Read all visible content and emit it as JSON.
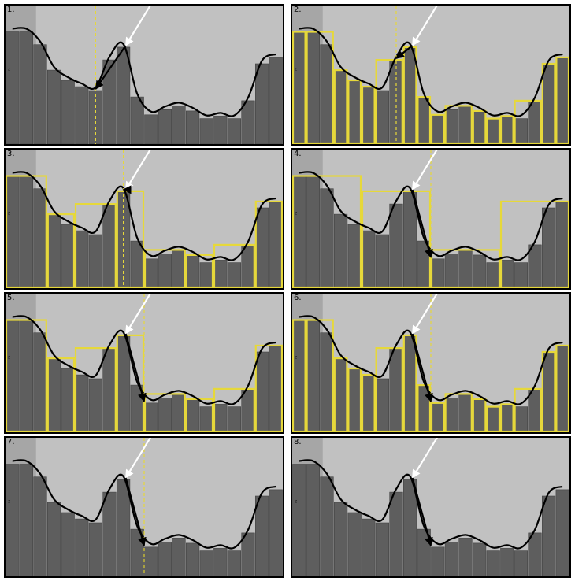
{
  "panels": [
    {
      "label": "1.",
      "variant": "single",
      "blocks": [],
      "target_bar": 6,
      "dashed": true
    },
    {
      "label": "2.",
      "variant": "full",
      "blocks": [
        [
          0,
          1
        ],
        [
          1,
          2
        ],
        [
          2,
          3
        ],
        [
          3,
          4
        ],
        [
          4,
          5
        ],
        [
          5,
          6
        ],
        [
          6,
          7
        ],
        [
          7,
          8
        ],
        [
          8,
          9
        ],
        [
          9,
          10
        ],
        [
          10,
          11
        ],
        [
          11,
          12
        ],
        [
          12,
          13
        ],
        [
          13,
          14
        ],
        [
          14,
          15
        ],
        [
          15,
          16
        ]
      ],
      "target_bar": 7,
      "dashed": true
    },
    {
      "label": "3.",
      "variant": "coarse",
      "blocks": [
        [
          0,
          2
        ],
        [
          2,
          4
        ],
        [
          4,
          6
        ],
        [
          6,
          8
        ],
        [
          8,
          10
        ],
        [
          10,
          12
        ],
        [
          12,
          14
        ],
        [
          14,
          16
        ]
      ],
      "target_bar": 8,
      "dashed": true
    },
    {
      "label": "4.",
      "variant": "coarser",
      "blocks": [
        [
          0,
          4
        ],
        [
          4,
          8
        ],
        [
          8,
          12
        ],
        [
          12,
          16
        ]
      ],
      "target_bar": 9.5,
      "dashed": true
    },
    {
      "label": "5.",
      "variant": "coarse",
      "blocks": [
        [
          0,
          2
        ],
        [
          2,
          4
        ],
        [
          4,
          6
        ],
        [
          6,
          8
        ],
        [
          8,
          10
        ],
        [
          10,
          12
        ],
        [
          12,
          14
        ],
        [
          14,
          16
        ]
      ],
      "target_bar": 9.5,
      "dashed": true
    },
    {
      "label": "6.",
      "variant": "full",
      "blocks": [
        [
          0,
          1
        ],
        [
          1,
          2
        ],
        [
          2,
          3
        ],
        [
          3,
          4
        ],
        [
          4,
          5
        ],
        [
          5,
          6
        ],
        [
          6,
          7
        ],
        [
          7,
          8
        ],
        [
          8,
          9
        ],
        [
          9,
          10
        ],
        [
          10,
          11
        ],
        [
          11,
          12
        ],
        [
          12,
          13
        ],
        [
          13,
          14
        ],
        [
          14,
          15
        ],
        [
          15,
          16
        ]
      ],
      "target_bar": 9.5,
      "dashed": true
    },
    {
      "label": "7.",
      "variant": "none",
      "blocks": [],
      "target_bar": 9.5,
      "dashed": true
    },
    {
      "label": "8.",
      "variant": "none",
      "blocks": [],
      "target_bar": 9.5,
      "dashed": false
    }
  ],
  "bar_heights": [
    0.88,
    0.88,
    0.78,
    0.58,
    0.5,
    0.45,
    0.42,
    0.66,
    0.76,
    0.37,
    0.23,
    0.27,
    0.3,
    0.26,
    0.2,
    0.22,
    0.2,
    0.34,
    0.63,
    0.68
  ],
  "colors": {
    "bars": "#5e5e5e",
    "bar_edge": "#444444",
    "background": "#c1c1c1",
    "yellow": "#e6d83a",
    "arrow_white": "#ffffff",
    "arrow_black": "#000000"
  },
  "axis_mark": "z"
}
